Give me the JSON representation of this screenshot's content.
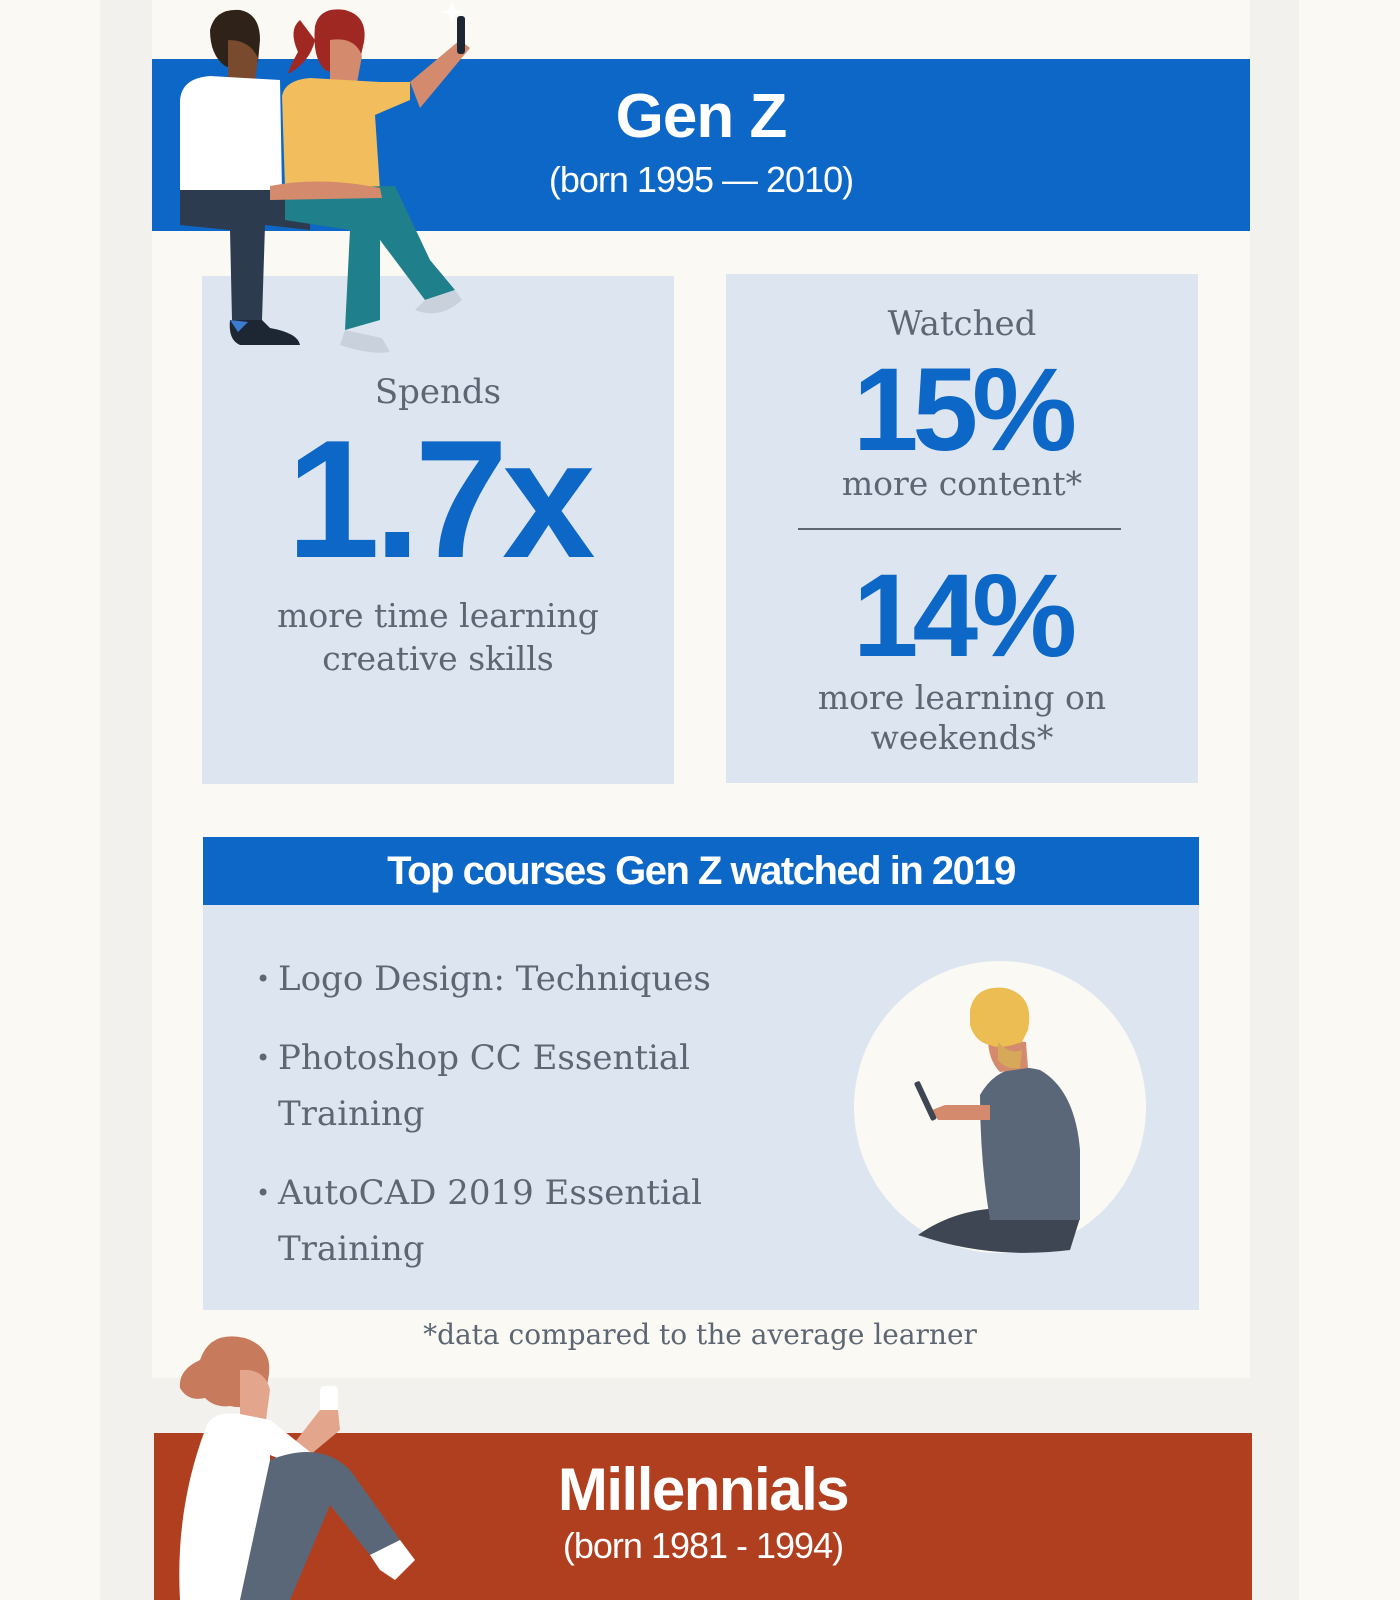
{
  "genz": {
    "title": "Gen Z",
    "subtitle": "(born 1995 — 2010)"
  },
  "stats": {
    "left": {
      "intro": "Spends",
      "value": "1.7x",
      "caption_line1": "more time learning",
      "caption_line2": "creative skills"
    },
    "right": {
      "intro": "Watched",
      "value1": "15%",
      "caption1": "more content*",
      "value2": "14%",
      "caption2_line1": "more learning on",
      "caption2_line2": "weekends*"
    }
  },
  "courses": {
    "heading": "Top courses Gen Z watched in 2019",
    "items": [
      {
        "line1": "Logo Design: Techniques",
        "line2": ""
      },
      {
        "line1": "Photoshop CC Essential",
        "line2": "Training"
      },
      {
        "line1": "AutoCAD 2019 Essential",
        "line2": "Training"
      }
    ],
    "bullet": "•"
  },
  "footnote": "*data compared to the average learner",
  "millennials": {
    "title": "Millennials",
    "subtitle": "(born 1981 - 1994)"
  },
  "colors": {
    "blue": "#0c67c7",
    "light_blue_box": "#dde6f0",
    "rust": "#b03f20",
    "text_gray": "#5d6673",
    "cream": "#fbf9f4"
  },
  "icons": [
    "couple-selfie-illustration",
    "person-reading-phone-illustration",
    "woman-holding-phone-illustration",
    "sparkle-icon"
  ]
}
